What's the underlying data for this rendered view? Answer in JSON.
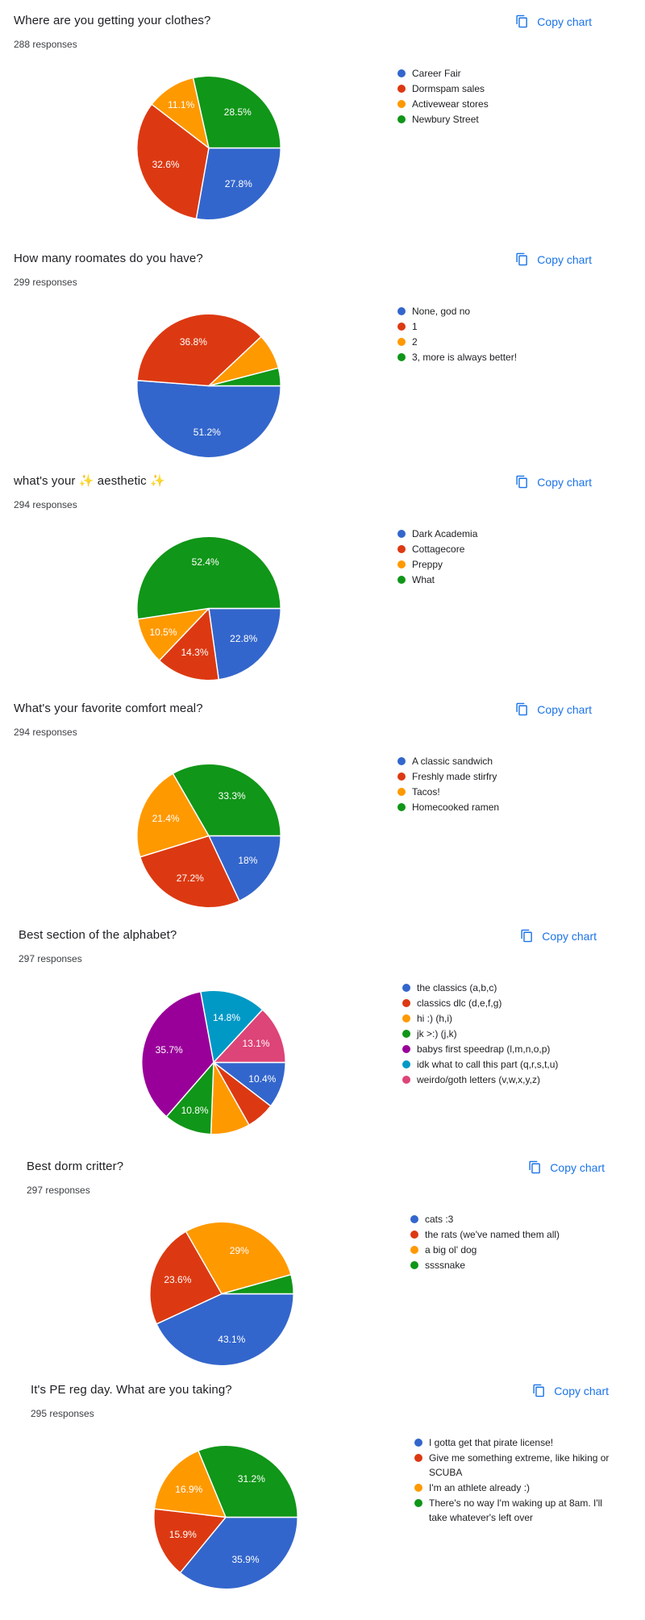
{
  "ui": {
    "copy_chart_label": "Copy chart",
    "accent_color": "#1a73e8"
  },
  "pie_layout": {
    "start": "3-o'clock",
    "direction": "clockwise",
    "legend_position": "right",
    "slice_label_color": "#ffffff"
  },
  "chart_data": [
    {
      "type": "pie",
      "title": "Where are you getting your clothes?",
      "responses_text": "288 responses",
      "categories": [
        "Career Fair",
        "Dormspam sales",
        "Activewear stores",
        "Newbury Street"
      ],
      "values": [
        27.8,
        32.6,
        11.1,
        28.5
      ],
      "slice_labels": [
        "27.8%",
        "32.6%",
        "11.1%",
        "28.5%"
      ],
      "colors": [
        "#3366CC",
        "#DC3912",
        "#FF9900",
        "#109618"
      ]
    },
    {
      "type": "pie",
      "title": "How many roomates do you have?",
      "responses_text": "299 responses",
      "categories": [
        "None, god no",
        "1",
        "2",
        "3, more is always better!"
      ],
      "values": [
        51.2,
        36.8,
        8.0,
        4.0
      ],
      "slice_labels": [
        "51.2%",
        "36.8%",
        null,
        null
      ],
      "colors": [
        "#3366CC",
        "#DC3912",
        "#FF9900",
        "#109618"
      ]
    },
    {
      "type": "pie",
      "title": "what's your ✨ aesthetic ✨",
      "responses_text": "294 responses",
      "categories": [
        "Dark Academia",
        "Cottagecore",
        "Preppy",
        "What"
      ],
      "values": [
        22.8,
        14.3,
        10.5,
        52.4
      ],
      "slice_labels": [
        "22.8%",
        "14.3%",
        "10.5%",
        "52.4%"
      ],
      "colors": [
        "#3366CC",
        "#DC3912",
        "#FF9900",
        "#109618"
      ]
    },
    {
      "type": "pie",
      "title": "What's your favorite comfort meal?",
      "responses_text": "294 responses",
      "categories": [
        "A classic sandwich",
        "Freshly made stirfry",
        "Tacos!",
        "Homecooked ramen"
      ],
      "values": [
        18.0,
        27.2,
        21.4,
        33.3
      ],
      "slice_labels": [
        "18%",
        "27.2%",
        "21.4%",
        "33.3%"
      ],
      "colors": [
        "#3366CC",
        "#DC3912",
        "#FF9900",
        "#109618"
      ]
    },
    {
      "type": "pie",
      "title": "Best section of the alphabet?",
      "responses_text": "297 responses",
      "categories": [
        "the classics (a,b,c)",
        "classics dlc (d,e,f,g)",
        "hi :) (h,i)",
        "jk >:) (j,k)",
        "babys first speedrap (l,m,n,o,p)",
        "idk what to call this part (q,r,s,t,u)",
        "weirdo/goth letters (v,w,x,y,z)"
      ],
      "values": [
        10.4,
        6.4,
        8.8,
        10.8,
        35.7,
        14.8,
        13.1
      ],
      "slice_labels": [
        "10.4%",
        null,
        null,
        "10.8%",
        "35.7%",
        "14.8%",
        "13.1%"
      ],
      "colors": [
        "#3366CC",
        "#DC3912",
        "#FF9900",
        "#109618",
        "#990099",
        "#0099C6",
        "#DD4477"
      ]
    },
    {
      "type": "pie",
      "title": "Best dorm critter?",
      "responses_text": "297 responses",
      "categories": [
        "cats :3",
        "the rats (we've named them all)",
        "a big ol' dog",
        "ssssnake"
      ],
      "values": [
        43.1,
        23.6,
        29.0,
        4.3
      ],
      "slice_labels": [
        "43.1%",
        "23.6%",
        "29%",
        null
      ],
      "colors": [
        "#3366CC",
        "#DC3912",
        "#FF9900",
        "#109618"
      ]
    },
    {
      "type": "pie",
      "title": "It's PE reg day. What are you taking?",
      "responses_text": "295 responses",
      "categories": [
        "I gotta get that pirate license!",
        "Give me something extreme, like hiking or SCUBA",
        "I'm an athlete already :)",
        "There's no way I'm waking up at 8am. I'll take whatever's left over"
      ],
      "values": [
        35.9,
        15.9,
        16.9,
        31.2
      ],
      "slice_labels": [
        "35.9%",
        "15.9%",
        "16.9%",
        "31.2%"
      ],
      "colors": [
        "#3366CC",
        "#DC3912",
        "#FF9900",
        "#109618"
      ]
    }
  ]
}
